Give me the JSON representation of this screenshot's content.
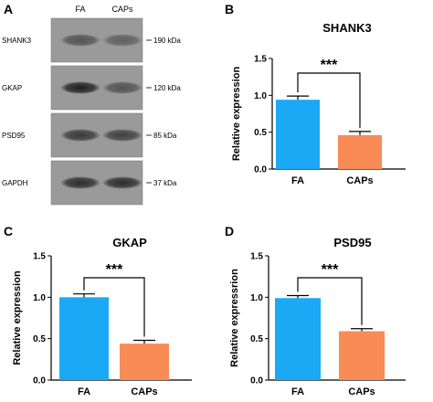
{
  "panels": {
    "a": "A",
    "b": "B",
    "c": "C",
    "d": "D"
  },
  "blot": {
    "lanes": [
      "FA",
      "CAPs"
    ],
    "rows": [
      {
        "protein": "SHANK3",
        "marker": "190 kDa"
      },
      {
        "protein": "GKAP",
        "marker": "120 kDa"
      },
      {
        "protein": "PSD95",
        "marker": "85 kDa"
      },
      {
        "protein": "GAPDH",
        "marker": "37 kDa"
      }
    ]
  },
  "colors": {
    "fa": "#1ba9f5",
    "caps": "#f98b56"
  },
  "chart_data": [
    {
      "type": "bar",
      "title": "SHANK3",
      "categories": [
        "FA",
        "CAPs"
      ],
      "values": [
        0.94,
        0.46
      ],
      "errors": [
        0.05,
        0.05
      ],
      "ylabel": "Relative expression",
      "ylim": [
        0,
        1.5
      ],
      "yticks": [
        "0.0",
        "0.5",
        "1.0",
        "1.5"
      ],
      "significance": "***"
    },
    {
      "type": "bar",
      "title": "GKAP",
      "categories": [
        "FA",
        "CAPs"
      ],
      "values": [
        1.0,
        0.44
      ],
      "errors": [
        0.04,
        0.04
      ],
      "ylabel": "Relative expression",
      "ylim": [
        0,
        1.5
      ],
      "yticks": [
        "0.0",
        "0.5",
        "1.0",
        "1.5"
      ],
      "significance": "***"
    },
    {
      "type": "bar",
      "title": "PSD95",
      "categories": [
        "FA",
        "CAPs"
      ],
      "values": [
        0.99,
        0.59
      ],
      "errors": [
        0.03,
        0.03
      ],
      "ylabel": "Relative expressrion",
      "ylim": [
        0,
        1.5
      ],
      "yticks": [
        "0.0",
        "0.5",
        "1.0",
        "1.5"
      ],
      "significance": "***"
    }
  ]
}
